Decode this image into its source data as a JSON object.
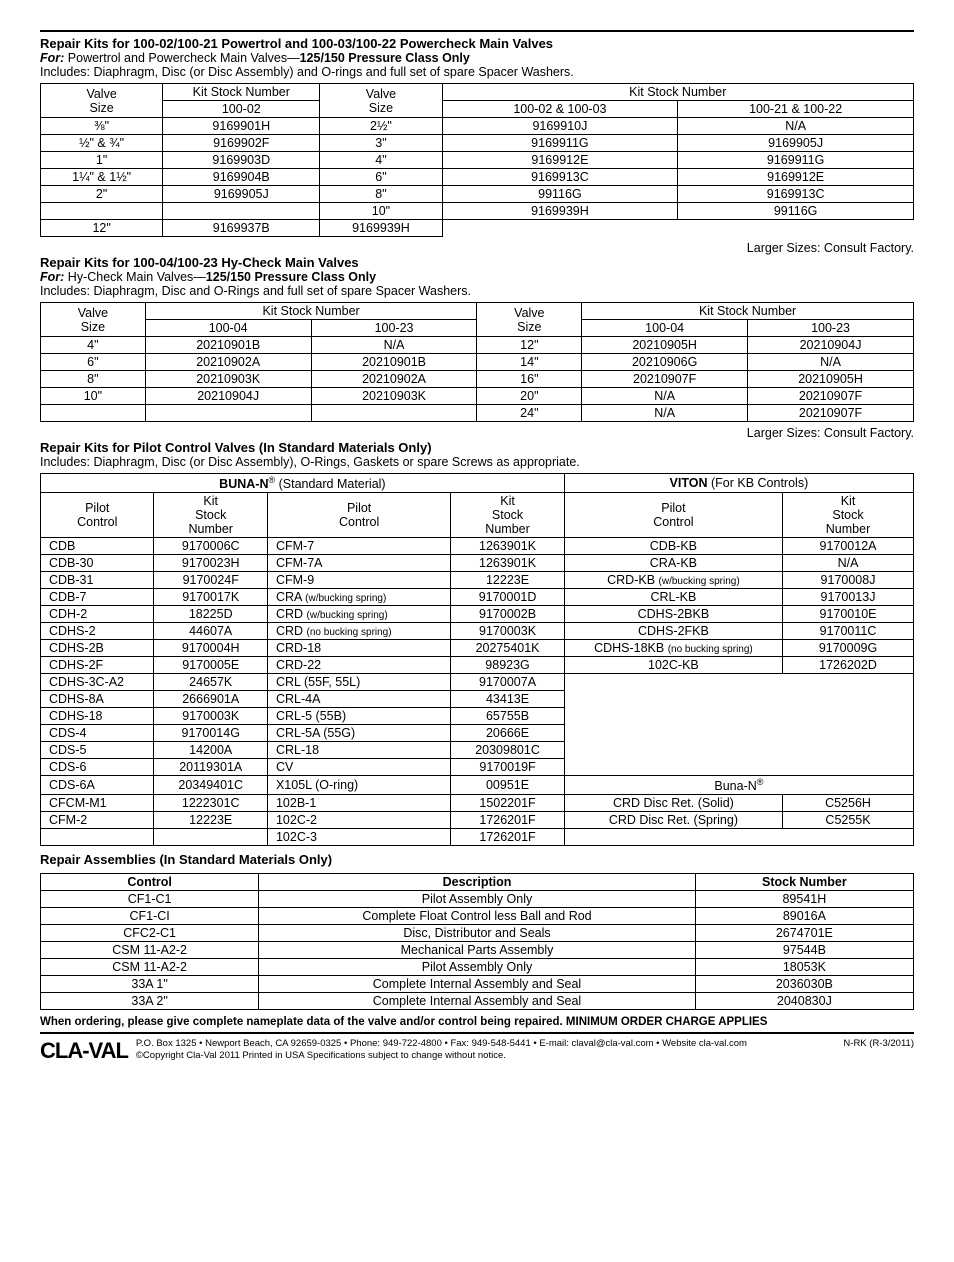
{
  "section1": {
    "title": "Repair Kits for 100-02/100-21 Powertrol and 100-03/100-22 Powercheck Main Valves",
    "for_label": "For:",
    "for_text": " Powertrol and Powercheck Main Valves—",
    "for_bold": "125/150 Pressure Class Only",
    "includes": "Includes: Diaphragm, Disc (or Disc Assembly) and O-rings and full set of spare Spacer Washers.",
    "headers": {
      "valve_size": "Valve\nSize",
      "kit_stock": "Kit Stock Number",
      "col1": "100-02",
      "col2": "100-02 & 100-03",
      "col3": "100-21 & 100-22"
    },
    "left_rows": [
      [
        "⅜\"",
        "9169901H"
      ],
      [
        "½\" &  ¾\"",
        "9169902F"
      ],
      [
        "1\"",
        "9169903D"
      ],
      [
        "1¼\" & 1½\"",
        "9169904B"
      ],
      [
        "2\"",
        "9169905J"
      ],
      [
        "",
        ""
      ]
    ],
    "right_rows": [
      [
        "2½\"",
        "9169910J",
        "N/A"
      ],
      [
        "3\"",
        "9169911G",
        "9169905J"
      ],
      [
        "4\"",
        "9169912E",
        "9169911G"
      ],
      [
        "6\"",
        "9169913C",
        "9169912E"
      ],
      [
        "8\"",
        "99116G",
        "9169913C"
      ],
      [
        "10\"",
        "9169939H",
        "99116G"
      ],
      [
        "12\"",
        "9169937B",
        "9169939H"
      ]
    ],
    "note": "Larger Sizes: Consult Factory."
  },
  "section2": {
    "title": "Repair Kits for 100-04/100-23 Hy-Check Main Valves",
    "for_label": "For:",
    "for_text": " Hy-Check Main Valves—",
    "for_bold": "125/150 Pressure Class Only",
    "includes": "Includes: Diaphragm, Disc and O-Rings and full set of spare Spacer Washers.",
    "headers": {
      "valve_size": "Valve\nSize",
      "kit_stock": "Kit Stock Number",
      "c1": "100-04",
      "c2": "100-23"
    },
    "left_rows": [
      [
        "4\"",
        "20210901B",
        "N/A"
      ],
      [
        "6\"",
        "20210902A",
        "20210901B"
      ],
      [
        "8\"",
        "20210903K",
        "20210902A"
      ],
      [
        "10\"",
        "20210904J",
        "20210903K"
      ],
      [
        "",
        "",
        ""
      ]
    ],
    "right_rows": [
      [
        "12\"",
        "20210905H",
        "20210904J"
      ],
      [
        "14\"",
        "20210906G",
        "N/A"
      ],
      [
        "16\"",
        "20210907F",
        "20210905H"
      ],
      [
        "20\"",
        "N/A",
        "20210907F"
      ],
      [
        "24\"",
        "N/A",
        "20210907F"
      ]
    ],
    "note": "Larger Sizes: Consult Factory."
  },
  "section3": {
    "title": "Repair Kits for Pilot Control Valves (In Standard Materials Only)",
    "includes": "Includes: Diaphragm, Disc (or Disc Assembly), O-Rings, Gaskets or spare Screws as appropriate.",
    "group1_label_a": "BUNA-N",
    "group1_label_b": " (Standard Material)",
    "group2_label_a": "VITON",
    "group2_label_b": " (For KB Controls)",
    "headers": {
      "pilot": "Pilot\nControl",
      "kit": "Kit\nStock\nNumber"
    },
    "colA": [
      [
        "CDB",
        "9170006C"
      ],
      [
        "CDB-30",
        "9170023H"
      ],
      [
        "CDB-31",
        "9170024F"
      ],
      [
        "CDB-7",
        "9170017K"
      ],
      [
        "CDH-2",
        "18225D"
      ],
      [
        "CDHS-2",
        "44607A"
      ],
      [
        "CDHS-2B",
        "9170004H"
      ],
      [
        "CDHS-2F",
        "9170005E"
      ],
      [
        "CDHS-3C-A2",
        "24657K"
      ],
      [
        "CDHS-8A",
        "2666901A"
      ],
      [
        "CDHS-18",
        "9170003K"
      ],
      [
        "CDS-4",
        "9170014G"
      ],
      [
        "CDS-5",
        "14200A"
      ],
      [
        "CDS-6",
        "20119301A"
      ],
      [
        "CDS-6A",
        "20349401C"
      ],
      [
        "CFCM-M1",
        "1222301C"
      ],
      [
        "CFM-2",
        "12223E"
      ],
      [
        "",
        ""
      ]
    ],
    "colB": [
      [
        "CFM-7",
        "1263901K"
      ],
      [
        "CFM-7A",
        "1263901K"
      ],
      [
        "CFM-9",
        "12223E"
      ],
      [
        "CRA",
        "(w/bucking spring)",
        "9170001D"
      ],
      [
        "CRD",
        "(w/bucking spring)",
        "9170002B"
      ],
      [
        "CRD",
        "(no bucking spring)",
        "9170003K"
      ],
      [
        "CRD-18",
        "",
        "20275401K"
      ],
      [
        "CRD-22",
        "",
        "98923G"
      ],
      [
        "CRL  (55F, 55L)",
        "",
        "9170007A"
      ],
      [
        "CRL-4A",
        "",
        "43413E"
      ],
      [
        "CRL-5  (55B)",
        "",
        "65755B"
      ],
      [
        "CRL-5A  (55G)",
        "",
        "20666E"
      ],
      [
        "CRL-18",
        "",
        "20309801C"
      ],
      [
        "CV",
        "",
        "9170019F"
      ],
      [
        "X105L  (O-ring)",
        "",
        "00951E"
      ],
      [
        "102B-1",
        "",
        "1502201F"
      ],
      [
        "102C-2",
        "",
        "1726201F"
      ],
      [
        "102C-3",
        "",
        "1726201F"
      ]
    ],
    "colC": [
      [
        "CDB-KB",
        "",
        "9170012A"
      ],
      [
        "CRA-KB",
        "",
        "N/A"
      ],
      [
        "CRD-KB",
        "(w/bucking spring)",
        "9170008J"
      ],
      [
        "CRL-KB",
        "",
        "9170013J"
      ],
      [
        "CDHS-2BKB",
        "",
        "9170010E"
      ],
      [
        "CDHS-2FKB",
        "",
        "9170011C"
      ],
      [
        "CDHS-18KB",
        "(no bucking spring)",
        "9170009G"
      ],
      [
        "102C-KB",
        "",
        "1726202D"
      ]
    ],
    "buna_sub_label": "Buna-N",
    "buna_rows": [
      [
        "CRD Disc Ret. (Solid)",
        "C5256H"
      ],
      [
        "CRD Disc Ret. (Spring)",
        "C5255K"
      ]
    ]
  },
  "section4": {
    "title": "Repair Assemblies (In Standard Materials Only)",
    "headers": {
      "control": "Control",
      "desc": "Description",
      "stock": "Stock Number"
    },
    "rows": [
      [
        "CF1-C1",
        "Pilot Assembly Only",
        "89541H"
      ],
      [
        "CF1-CI",
        "Complete Float Control less Ball and Rod",
        "89016A"
      ],
      [
        "CFC2-C1",
        "Disc, Distributor and Seals",
        "2674701E"
      ],
      [
        "CSM 11-A2-2",
        "Mechanical Parts Assembly",
        "97544B"
      ],
      [
        "CSM 11-A2-2",
        "Pilot Assembly Only",
        "18053K"
      ],
      [
        "33A 1\"",
        "Complete Internal Assembly and Seal",
        "2036030B"
      ],
      [
        "33A 2\"",
        "Complete Internal Assembly and Seal",
        "2040830J"
      ]
    ]
  },
  "order_note": "When ordering, please give complete nameplate data of the valve and/or control being repaired. MINIMUM ORDER CHARGE APPLIES",
  "footer": {
    "logo": "CLA-VAL",
    "line1": "P.O. Box 1325 • Newport Beach, CA 92659-0325 • Phone: 949-722-4800 • Fax: 949-548-5441 • E-mail: claval@cla-val.com • Website cla-val.com",
    "line2": "©Copyright Cla-Val 2011   Printed in USA   Specifications subject to change without notice.",
    "right": "N-RK (R-3/2011)"
  }
}
